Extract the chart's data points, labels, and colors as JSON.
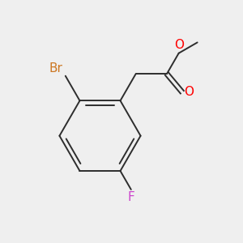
{
  "bg_color": "#efefef",
  "bond_color": "#2d2d2d",
  "atom_colors": {
    "O": "#ff0000",
    "Br": "#cc7722",
    "F": "#cc44cc"
  },
  "font_size_atoms": 11,
  "lw": 1.4
}
